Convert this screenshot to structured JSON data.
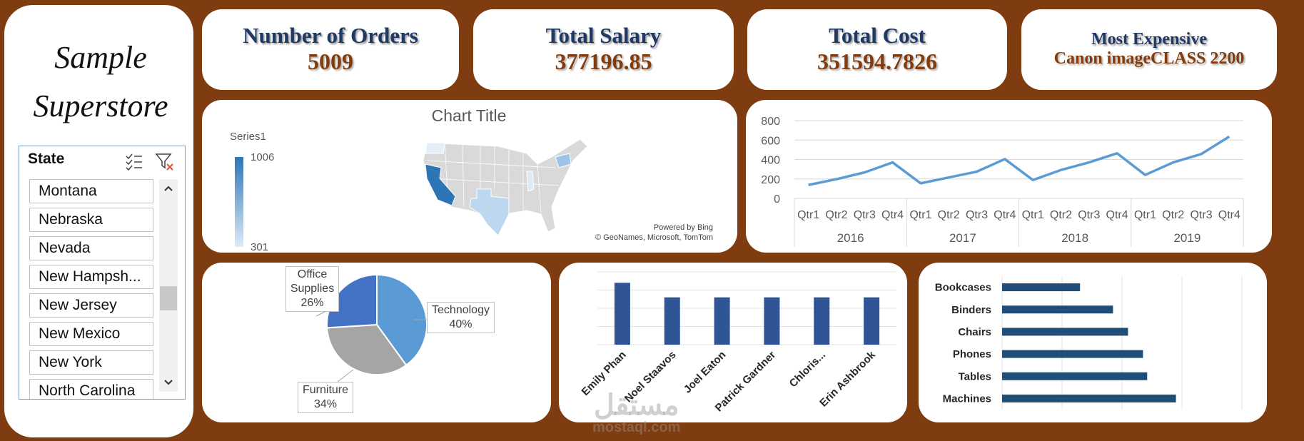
{
  "sidebar": {
    "title": "Sample Superstore"
  },
  "slicer": {
    "header": "State",
    "items": [
      "Montana",
      "Nebraska",
      "Nevada",
      "New Hampsh...",
      "New Jersey",
      "New Mexico",
      "New York",
      "North Carolina"
    ]
  },
  "kpis": [
    {
      "label": "Number of Orders",
      "value": 5009
    },
    {
      "label": "Total Salary",
      "value": 377196.85
    },
    {
      "label": "Total Cost",
      "value": 351594.7826
    },
    {
      "label": "Most Expensive",
      "value": "Canon imageCLASS 2200"
    }
  ],
  "watermark": {
    "text": "مستقل",
    "url": "mostaql.com"
  },
  "chart_data": [
    {
      "type": "map",
      "title": "Chart Title",
      "legend_title": "Series1",
      "scale_max": 1006,
      "scale_min": 301,
      "colors": [
        "#deebf7",
        "#2e75b6"
      ],
      "attribution": [
        "Powered by Bing",
        "© GeoNames, Microsoft, TomTom"
      ]
    },
    {
      "type": "line",
      "categories": [
        "Qtr1",
        "Qtr2",
        "Qtr3",
        "Qtr4",
        "Qtr1",
        "Qtr2",
        "Qtr3",
        "Qtr4",
        "Qtr1",
        "Qtr2",
        "Qtr3",
        "Qtr4",
        "Qtr1",
        "Qtr2",
        "Qtr3",
        "Qtr4"
      ],
      "groups": [
        "2016",
        "2017",
        "2018",
        "2019"
      ],
      "values": [
        138,
        198,
        267,
        370,
        155,
        215,
        275,
        404,
        189,
        292,
        370,
        464,
        241,
        370,
        456,
        636
      ],
      "color": "#5b9bd5",
      "ylim": [
        0,
        800
      ],
      "yticks": [
        0,
        200,
        400,
        600,
        800
      ],
      "grid": true
    },
    {
      "type": "pie",
      "categories": [
        "Technology",
        "Furniture",
        "Office Supplies"
      ],
      "values": [
        40,
        34,
        26
      ],
      "value_labels": [
        "40%",
        "34%",
        "26%"
      ],
      "colors": [
        "#5b9bd5",
        "#a5a5a5",
        "#4472c4"
      ]
    },
    {
      "type": "bar",
      "categories": [
        "Emily Phan",
        "Noel Staavos",
        "Joel Eaton",
        "Patrick Gardner",
        "Chloris...",
        "Erin Ashbrook"
      ],
      "values": [
        17,
        13,
        13,
        13,
        13,
        13
      ],
      "color": "#2f5597",
      "ylim": [
        0,
        20
      ],
      "yticks": [
        0,
        5,
        10,
        15,
        20
      ],
      "grid": true,
      "tick_labels": false
    },
    {
      "type": "hbar",
      "categories": [
        "Bookcases",
        "Binders",
        "Chairs",
        "Phones",
        "Tables",
        "Machines"
      ],
      "values": [
        1.3,
        1.85,
        2.1,
        2.35,
        2.42,
        2.9
      ],
      "color": "#1f4e79",
      "xlim": [
        0,
        4
      ],
      "xticks": [
        0,
        1,
        2,
        3,
        4
      ],
      "grid": true,
      "tick_labels": false
    }
  ]
}
